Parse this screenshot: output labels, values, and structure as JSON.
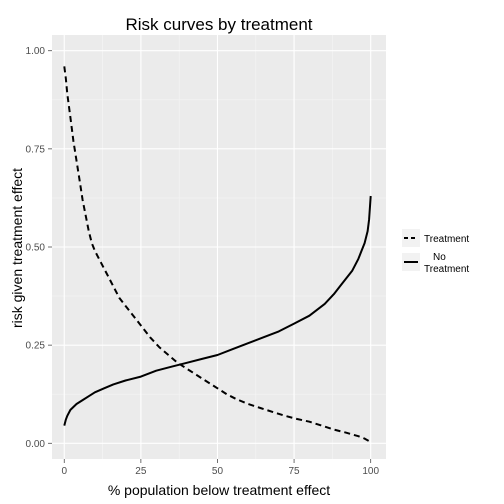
{
  "chart_data": {
    "type": "line",
    "title": "Risk curves by treatment",
    "xlabel": "% population below treatment effect",
    "ylabel": "risk given treatment effect",
    "xlim": [
      -4,
      105
    ],
    "ylim": [
      -0.04,
      1.04
    ],
    "xticks": [
      0,
      25,
      50,
      75,
      100
    ],
    "xtick_labels": [
      "0",
      "25",
      "50",
      "75",
      "100"
    ],
    "yticks": [
      0.0,
      0.25,
      0.5,
      0.75,
      1.0
    ],
    "ytick_labels": [
      "0.00",
      "0.25",
      "0.50",
      "0.75",
      "1.00"
    ],
    "grid": true,
    "legend": {
      "position": "right"
    },
    "series": [
      {
        "name": "Treatment",
        "linestyle": "dashed",
        "color": "#000000",
        "x": [
          0,
          0.5,
          1,
          2,
          3,
          4,
          5,
          6,
          7,
          8,
          9,
          10,
          12,
          14,
          16,
          18,
          20,
          22,
          25,
          28,
          31,
          34,
          37,
          40,
          43,
          46,
          50,
          53,
          56,
          60,
          64,
          68,
          72,
          76,
          80,
          84,
          88,
          92,
          96,
          98,
          100
        ],
        "y": [
          0.96,
          0.93,
          0.89,
          0.83,
          0.77,
          0.72,
          0.67,
          0.62,
          0.58,
          0.54,
          0.51,
          0.49,
          0.46,
          0.43,
          0.4,
          0.37,
          0.35,
          0.33,
          0.3,
          0.27,
          0.245,
          0.225,
          0.205,
          0.19,
          0.175,
          0.16,
          0.14,
          0.125,
          0.113,
          0.1,
          0.09,
          0.08,
          0.07,
          0.062,
          0.055,
          0.045,
          0.035,
          0.027,
          0.018,
          0.012,
          0.003
        ]
      },
      {
        "name": "No Treatment",
        "linestyle": "solid",
        "color": "#000000",
        "x": [
          0,
          0.5,
          1,
          2,
          4,
          6,
          8,
          10,
          13,
          16,
          20,
          25,
          30,
          35,
          40,
          45,
          50,
          55,
          60,
          65,
          70,
          75,
          80,
          85,
          88,
          90,
          92,
          94,
          96,
          97,
          98,
          99,
          99.5,
          100
        ],
        "y": [
          0.045,
          0.06,
          0.07,
          0.085,
          0.1,
          0.11,
          0.12,
          0.13,
          0.14,
          0.15,
          0.16,
          0.17,
          0.185,
          0.195,
          0.205,
          0.215,
          0.225,
          0.24,
          0.255,
          0.27,
          0.285,
          0.305,
          0.325,
          0.355,
          0.38,
          0.4,
          0.42,
          0.44,
          0.47,
          0.49,
          0.51,
          0.54,
          0.57,
          0.63
        ]
      }
    ]
  },
  "legend_items": [
    {
      "label": "Treatment",
      "linestyle": "dashed"
    },
    {
      "label": "No\nTreatment",
      "linestyle": "solid"
    }
  ],
  "colors": {
    "panel_background": "#ebebeb",
    "grid_major": "#ffffff",
    "text": "#000000",
    "tick_text": "#4d4d4d",
    "line": "#000000"
  }
}
